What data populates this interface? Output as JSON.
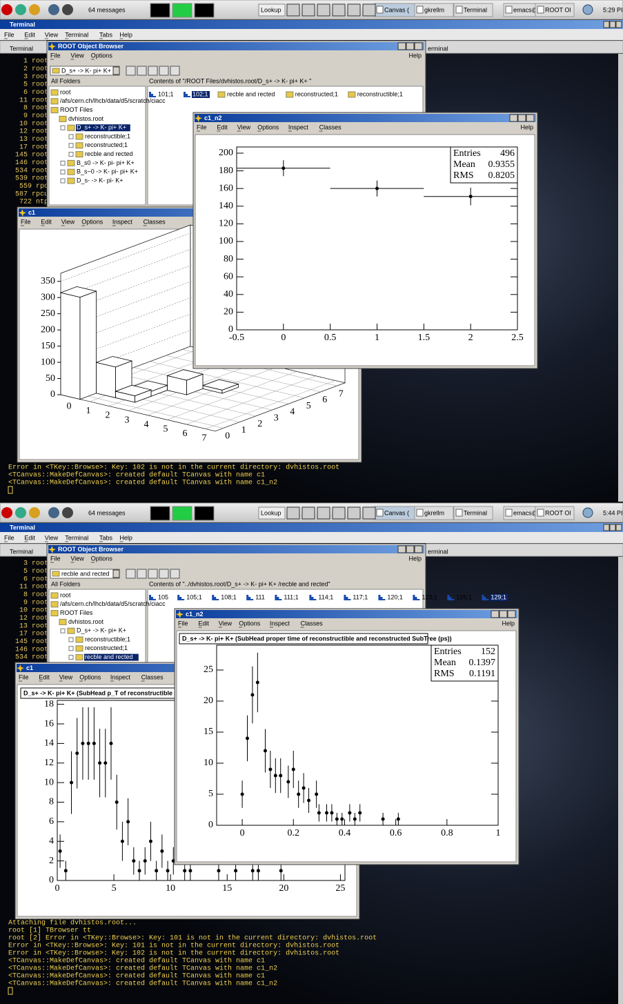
{
  "screens": [
    {
      "taskbar": {
        "messages": "64 messages",
        "buttons": [
          "Lookup",
          "Canvas (",
          "gkrellm",
          "Terminal",
          "emacs@l",
          "ROOT Ol"
        ],
        "clock": "5:29 PI"
      },
      "terminal": {
        "title": "Terminal",
        "menu": [
          "File",
          "Edit",
          "View",
          "Terminal",
          "Tabs",
          "Help"
        ],
        "tabs": [
          "Terminal",
          "erminal"
        ],
        "side_lines": [
          "1 root",
          "2 root",
          "3 root",
          "5 root",
          "6 root",
          "11 root",
          "8 root",
          "9 root",
          "10 root",
          "12 root",
          "13 root",
          "17 root",
          "145 root",
          "146 root",
          "534 root",
          "539 root",
          "559 rpc",
          "587 rpcu",
          "722 ntp"
        ],
        "bottom_lines": [
          "Error in <TKey::Browse>:  Key: 102 is not in the current directory: dvhistos.root",
          "<TCanvas::MakeDefCanvas>: created default TCanvas with name c1",
          "<TCanvas::MakeDefCanvas>: created default TCanvas with name c1_n2"
        ]
      },
      "browser": {
        "title": "ROOT Object Browser",
        "menu": [
          "File",
          "View",
          "Options"
        ],
        "help": "Help",
        "combo": "D_s+ -> K- pi+ K+",
        "folders_header": "All Folders",
        "contents_header": "Contents of \"/ROOT Files/dvhistos.root/D_s+ -> K- pi+ K+ \"",
        "tree": [
          {
            "label": "root",
            "selected": false
          },
          {
            "label": "/afs/cern.ch/lhcb/data/d5/scratch/ciacc",
            "selected": false
          },
          {
            "label": "ROOT Files",
            "selected": false
          },
          {
            "label": "dvhistos.root",
            "selected": false
          },
          {
            "label": "D_s+ -> K- pi+ K+",
            "selected": true
          },
          {
            "label": "reconstructible;1",
            "selected": false
          },
          {
            "label": "reconstructed;1",
            "selected": false
          },
          {
            "label": "recble and rected",
            "selected": false
          },
          {
            "label": "B_s0 -> K- pi- pi+ K+",
            "selected": false
          },
          {
            "label": "B_s~0 -> K- pi- pi+ K+",
            "selected": false
          },
          {
            "label": "D_s- -> K- pi- K+",
            "selected": false
          }
        ],
        "items": [
          {
            "label": "101;1",
            "icon": "histogram",
            "selected": false
          },
          {
            "label": "102;1",
            "icon": "histogram",
            "selected": true
          },
          {
            "label": "recble and rected",
            "icon": "folder",
            "selected": false
          },
          {
            "label": "reconstructed;1",
            "icon": "folder",
            "selected": false
          },
          {
            "label": "reconstructible;1",
            "icon": "folder",
            "selected": false
          }
        ]
      },
      "c1": {
        "title": "c1",
        "menu": [
          "File",
          "Edit",
          "View",
          "Options",
          "Inspect",
          "Classes"
        ],
        "chart_data": {
          "type": "lego",
          "xlim": [
            -0.5,
            7.5
          ],
          "ylim": [
            -0.5,
            7.5
          ],
          "zlim": [
            0,
            375
          ],
          "xticks": [
            0,
            1,
            2,
            3,
            4,
            5,
            6,
            7
          ],
          "yticks": [
            0,
            1,
            2,
            3,
            4,
            5,
            6,
            7
          ],
          "zticks": [
            0,
            50,
            100,
            150,
            200,
            250,
            300,
            350
          ],
          "cells": [
            {
              "x": 4,
              "y": 4,
              "z": 10
            },
            {
              "x": 3,
              "y": 3,
              "z": 45
            },
            {
              "x": 2,
              "y": 2,
              "z": 15
            },
            {
              "x": 1,
              "y": 1,
              "z": 95
            },
            {
              "x": 2,
              "y": 1,
              "z": 20
            },
            {
              "x": 0,
              "y": 0,
              "z": 315
            }
          ]
        }
      },
      "c1_n2": {
        "title": "c1_n2",
        "menu": [
          "File",
          "Edit",
          "View",
          "Options",
          "Inspect",
          "Classes"
        ],
        "help": "Help",
        "chart_data": {
          "type": "errorbar",
          "xlim": [
            -0.5,
            2.5
          ],
          "ylim": [
            0,
            207
          ],
          "xticks": [
            -0.5,
            0,
            0.5,
            1,
            1.5,
            2,
            2.5
          ],
          "yticks": [
            0,
            20,
            40,
            60,
            80,
            100,
            120,
            140,
            160,
            180,
            200
          ],
          "x": [
            0,
            1,
            2
          ],
          "values": [
            183,
            160,
            151
          ],
          "xerr": [
            0.5,
            0.5,
            0.5
          ],
          "yerr": [
            9,
            9,
            10
          ],
          "stats": [
            {
              "label": "Entries",
              "value": 496
            },
            {
              "label": "Mean",
              "value": 0.9355
            },
            {
              "label": "RMS",
              "value": 0.8205
            }
          ]
        }
      }
    },
    {
      "taskbar": {
        "messages": "64 messages",
        "buttons": [
          "Lookup",
          "Canvas (",
          "gkrellm",
          "Terminal",
          "emacs@l",
          "ROOT Ol"
        ],
        "clock": "5:44 PI"
      },
      "terminal": {
        "title": "Terminal",
        "menu": [
          "File",
          "Edit",
          "View",
          "Terminal",
          "Tabs",
          "Help"
        ],
        "tabs": [
          "Terminal",
          "erminal"
        ],
        "side_lines": [
          "3 root",
          "5 root",
          "6 root",
          "11 root",
          "8 root",
          "9 root",
          "10 root",
          "12 root",
          "13 root",
          "17 root",
          "145 root",
          "146 root",
          "534 root"
        ],
        "bottom_lines": [
          "Attaching file dvhistos.root...",
          "root [1] TBrowser tt",
          "root [2] Error in <TKey::Browse>:  Key: 101 is not in the current directory: dvhistos.root",
          "Error in <TKey::Browse>:  Key: 101 is not in the current directory: dvhistos.root",
          "Error in <TKey::Browse>:  Key: 102 is not in the current directory: dvhistos.root",
          "<TCanvas::MakeDefCanvas>: created default TCanvas with name c1",
          "<TCanvas::MakeDefCanvas>: created default TCanvas with name c1_n2",
          "<TCanvas::MakeDefCanvas>: created default TCanvas with name c1",
          "<TCanvas::MakeDefCanvas>: created default TCanvas with name c1_n2"
        ]
      },
      "browser": {
        "title": "ROOT Object Browser",
        "menu": [
          "File",
          "View",
          "Options"
        ],
        "help": "Help",
        "combo": "recble and rected",
        "folders_header": "All Folders",
        "contents_header": "Contents of \"../dvhistos.root/D_s+ -> K- pi+ K+ /recble and rected\"",
        "tree": [
          {
            "label": "root",
            "selected": false
          },
          {
            "label": "/afs/cern.ch/lhcb/data/d5/scratch/ciacc",
            "selected": false
          },
          {
            "label": "ROOT Files",
            "selected": false
          },
          {
            "label": "dvhistos.root",
            "selected": false
          },
          {
            "label": "D_s+ -> K- pi+ K+",
            "selected": false
          },
          {
            "label": "reconstructible;1",
            "selected": false
          },
          {
            "label": "reconstructed;1",
            "selected": false
          },
          {
            "label": "recble and rected",
            "selected": true
          }
        ],
        "items": [
          {
            "label": "105",
            "icon": "histogram",
            "selected": false
          },
          {
            "label": "105;1",
            "icon": "histogram",
            "selected": false
          },
          {
            "label": "108;1",
            "icon": "histogram",
            "selected": false
          },
          {
            "label": "111",
            "icon": "histogram",
            "selected": false
          },
          {
            "label": "111;1",
            "icon": "histogram",
            "selected": false
          },
          {
            "label": "114;1",
            "icon": "histogram",
            "selected": false
          },
          {
            "label": "117;1",
            "icon": "histogram",
            "selected": false
          },
          {
            "label": "120;1",
            "icon": "histogram",
            "selected": false
          },
          {
            "label": "123;1",
            "icon": "histogram",
            "selected": false
          },
          {
            "label": "126;1",
            "icon": "histogram",
            "selected": false
          },
          {
            "label": "129;1",
            "icon": "histogram",
            "selected": true
          }
        ]
      },
      "c1": {
        "title": "c1",
        "menu": [
          "File",
          "Edit",
          "View",
          "Options",
          "Inspect",
          "Classes"
        ],
        "chart_data": {
          "type": "errorbar",
          "title": "D_s+ -> K- pi+ K+ (SubHead p_T of reconstructible and",
          "xlim": [
            0,
            25.4
          ],
          "ylim": [
            0,
            18.4
          ],
          "xticks": [
            0,
            5,
            10,
            15,
            20,
            25
          ],
          "yticks": [
            0,
            2,
            4,
            6,
            8,
            10,
            12,
            14,
            16,
            18
          ],
          "x": [
            0.25,
            0.75,
            1.25,
            1.75,
            2.25,
            2.75,
            3.25,
            3.75,
            4.25,
            4.75,
            5.25,
            5.75,
            6.25,
            6.75,
            7.25,
            7.75,
            8.25,
            8.75,
            9.25,
            9.75,
            10.25,
            11.25,
            11.75,
            14.25,
            15.75,
            17.25,
            17.75,
            19.75
          ],
          "values": [
            3,
            1,
            10,
            13,
            14,
            14,
            14,
            12,
            12,
            14,
            8,
            4,
            6,
            2,
            1,
            2,
            4,
            1,
            3,
            1,
            2,
            1,
            1,
            1,
            1,
            1,
            1,
            1
          ],
          "yerr": [
            1.7,
            1,
            3.2,
            3.6,
            3.7,
            3.7,
            3.7,
            3.5,
            3.5,
            3.7,
            2.8,
            2,
            2.4,
            1.4,
            1,
            1.4,
            2,
            1,
            1.7,
            1,
            1.4,
            1,
            1,
            1,
            1,
            1,
            1,
            1
          ]
        }
      },
      "c1_n2": {
        "title": "c1_n2",
        "menu": [
          "File",
          "Edit",
          "View",
          "Options",
          "Inspect",
          "Classes"
        ],
        "help": "Help",
        "chart_data": {
          "type": "errorbar",
          "title": "D_s+ -> K- pi+ K+ (SubHead proper time of reconstructible and reconstructed SubTree (ps))",
          "xlim": [
            -0.1,
            1
          ],
          "ylim": [
            0,
            29
          ],
          "xticks": [
            0,
            0.2,
            0.4,
            0.6,
            0.8,
            1
          ],
          "yticks": [
            0,
            5,
            10,
            15,
            20,
            25
          ],
          "x": [
            0,
            0.02,
            0.04,
            0.06,
            0.09,
            0.11,
            0.13,
            0.15,
            0.18,
            0.2,
            0.22,
            0.24,
            0.26,
            0.29,
            0.3,
            0.33,
            0.35,
            0.37,
            0.39,
            0.42,
            0.44,
            0.46,
            0.55,
            0.61
          ],
          "values": [
            5,
            14,
            21,
            23,
            12,
            9,
            8,
            8,
            7,
            9,
            5,
            6,
            4,
            5,
            2,
            2,
            2,
            1,
            1,
            2,
            1,
            2,
            1,
            1
          ],
          "yerr": [
            2.2,
            3.7,
            4.6,
            4.8,
            3.5,
            3,
            2.8,
            2.8,
            2.6,
            3,
            2.2,
            2.4,
            2,
            2.2,
            1.4,
            1.4,
            1.4,
            1,
            1,
            1.4,
            1,
            1.4,
            1,
            1
          ],
          "stats": [
            {
              "label": "Entries",
              "value": 152
            },
            {
              "label": "Mean",
              "value": 0.1397
            },
            {
              "label": "RMS",
              "value": 0.1191
            }
          ]
        }
      }
    }
  ]
}
